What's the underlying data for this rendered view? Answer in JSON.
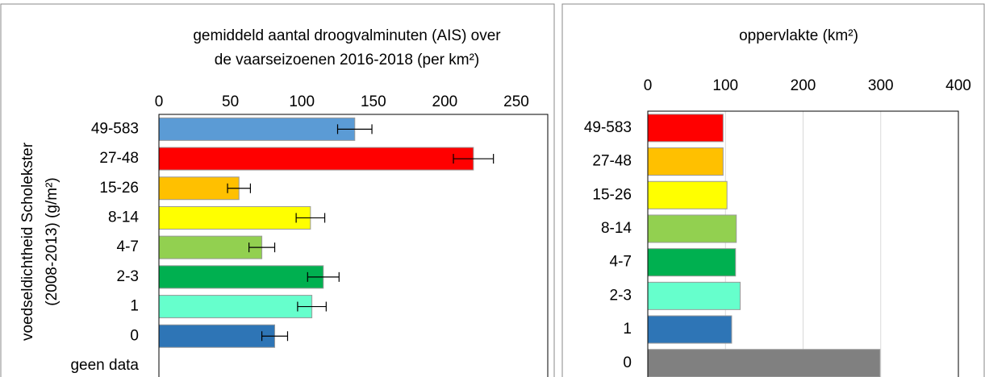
{
  "chart_data": [
    {
      "type": "bar",
      "orientation": "horizontal",
      "title_lines": [
        "gemiddeld aantal droogvalminuten (AIS) over",
        "de vaarseizoenen 2016-2018 (per km²)"
      ],
      "ylabel_lines": [
        "voedseldichtheid Scholekster",
        "(2008-2013) (g/m²)"
      ],
      "categories": [
        "49-583",
        "27-48",
        "15-26",
        "8-14",
        "4-7",
        "2-3",
        "1",
        "0",
        "geen data"
      ],
      "values": [
        137,
        220,
        56,
        106,
        72,
        115,
        107,
        81,
        null
      ],
      "errors": [
        12,
        14,
        8,
        10,
        9,
        11,
        10,
        9,
        null
      ],
      "colors": [
        "#5b9bd5",
        "#ff0000",
        "#ffc000",
        "#ffff00",
        "#92d050",
        "#00b050",
        "#66ffcc",
        "#2e75b6",
        null
      ],
      "xlim": [
        0,
        272
      ],
      "xticks": [
        0,
        50,
        100,
        150,
        200,
        250
      ],
      "grid": false
    },
    {
      "type": "bar",
      "orientation": "horizontal",
      "title_lines": [
        "oppervlakte (km²)"
      ],
      "categories": [
        "49-583",
        "27-48",
        "15-26",
        "8-14",
        "4-7",
        "2-3",
        "1",
        "0"
      ],
      "values": [
        97,
        97,
        102,
        114,
        113,
        119,
        108,
        299
      ],
      "colors": [
        "#ff0000",
        "#ffc000",
        "#ffff00",
        "#92d050",
        "#00b050",
        "#66ffcc",
        "#2e75b6",
        "#808080"
      ],
      "xlim": [
        0,
        400
      ],
      "xticks": [
        0,
        100,
        200,
        300,
        400
      ],
      "grid": true
    }
  ]
}
